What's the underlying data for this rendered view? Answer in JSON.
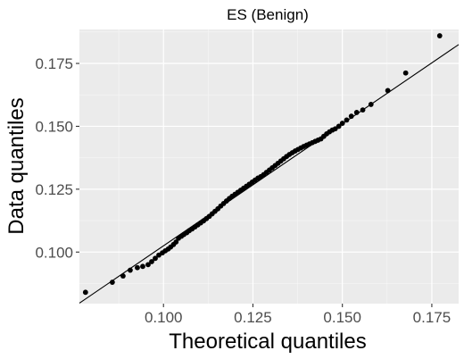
{
  "chart_data": {
    "type": "scatter",
    "title": "ES (Benign)",
    "xlabel": "Theoretical quantiles",
    "ylabel": "Data quantiles",
    "xlim": [
      0.0765,
      0.1825
    ],
    "ylim": [
      0.0795,
      0.1885
    ],
    "x_ticks": [
      0.1,
      0.125,
      0.15,
      0.175
    ],
    "x_tick_labels": [
      "0.100",
      "0.125",
      "0.150",
      "0.175"
    ],
    "y_ticks": [
      0.1,
      0.125,
      0.15,
      0.175
    ],
    "y_tick_labels": [
      "0.100",
      "0.125",
      "0.150",
      "0.175"
    ],
    "grid": true,
    "reference_line": {
      "x": [
        0.0765,
        0.1825
      ],
      "y": [
        0.0797,
        0.1825
      ]
    },
    "points": {
      "x": [
        0.0782,
        0.0857,
        0.0887,
        0.0907,
        0.0927,
        0.0942,
        0.0957,
        0.0967,
        0.0977,
        0.0987,
        0.0997,
        0.1005,
        0.1013,
        0.102,
        0.1028,
        0.1035,
        0.1042,
        0.105,
        0.1057,
        0.1065,
        0.1072,
        0.108,
        0.1088,
        0.1096,
        0.1104,
        0.1112,
        0.112,
        0.1128,
        0.1136,
        0.1144,
        0.1152,
        0.116,
        0.1168,
        0.1176,
        0.1184,
        0.1192,
        0.12,
        0.1208,
        0.1216,
        0.1224,
        0.1232,
        0.124,
        0.1248,
        0.1256,
        0.1264,
        0.1272,
        0.128,
        0.1288,
        0.1296,
        0.1304,
        0.1312,
        0.132,
        0.1328,
        0.1336,
        0.1344,
        0.1352,
        0.136,
        0.1368,
        0.1376,
        0.1384,
        0.1392,
        0.14,
        0.1408,
        0.1416,
        0.1424,
        0.1432,
        0.144,
        0.1448,
        0.1456,
        0.1464,
        0.1472,
        0.148,
        0.149,
        0.15,
        0.1512,
        0.1525,
        0.154,
        0.1557,
        0.158,
        0.1627,
        0.1677,
        0.1772
      ],
      "y": [
        0.084,
        0.088,
        0.0905,
        0.0928,
        0.0938,
        0.0943,
        0.095,
        0.0962,
        0.0975,
        0.0988,
        0.0997,
        0.1005,
        0.1012,
        0.102,
        0.103,
        0.104,
        0.1055,
        0.1063,
        0.107,
        0.1077,
        0.1085,
        0.1092,
        0.11,
        0.1108,
        0.1116,
        0.1124,
        0.1133,
        0.1142,
        0.1152,
        0.1162,
        0.1172,
        0.1183,
        0.1193,
        0.1203,
        0.1213,
        0.1222,
        0.123,
        0.1238,
        0.1246,
        0.1254,
        0.1262,
        0.127,
        0.1278,
        0.1286,
        0.1294,
        0.13,
        0.1308,
        0.1317,
        0.1326,
        0.1335,
        0.1344,
        0.1353,
        0.1362,
        0.1371,
        0.138,
        0.1388,
        0.1395,
        0.1402,
        0.1408,
        0.1414,
        0.142,
        0.1425,
        0.143,
        0.1435,
        0.144,
        0.1445,
        0.145,
        0.146,
        0.147,
        0.1478,
        0.1485,
        0.149,
        0.15,
        0.1512,
        0.1525,
        0.154,
        0.1555,
        0.1565,
        0.1587,
        0.1642,
        0.1712,
        0.186
      ]
    }
  }
}
